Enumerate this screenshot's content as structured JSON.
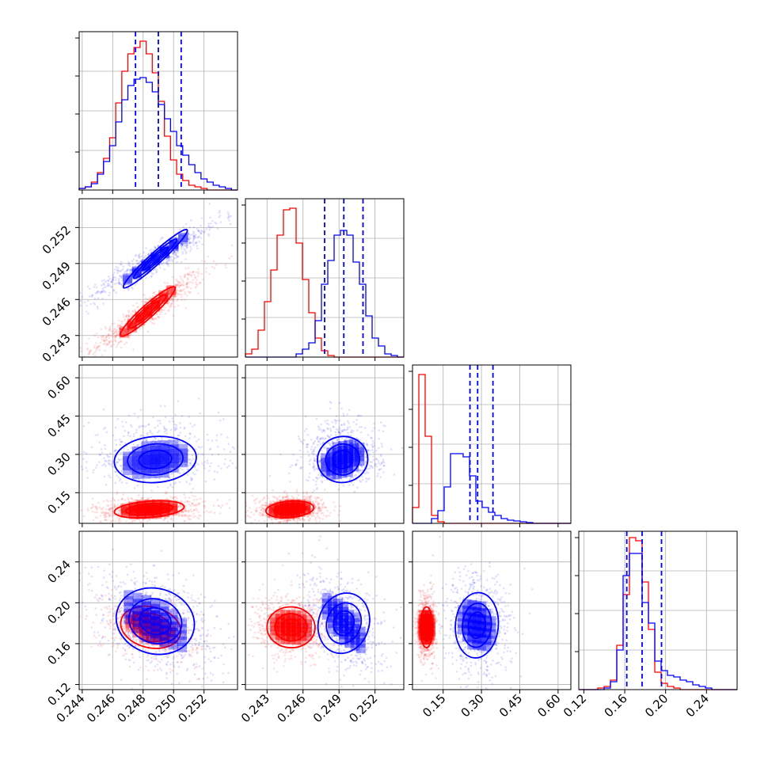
{
  "chart_data": {
    "type": "corner",
    "grid": true,
    "series": [
      {
        "color": "#ff0000"
      },
      {
        "color": "#0000ff"
      }
    ],
    "parameters": [
      {
        "range": [
          0.2438,
          0.2542
        ],
        "ticks": [
          0.244,
          0.246,
          0.248,
          0.25,
          0.252
        ],
        "tick_labels": [
          "0.244",
          "0.246",
          "0.248",
          "0.250",
          "0.252"
        ]
      },
      {
        "range": [
          0.2412,
          0.2544
        ],
        "ticks": [
          0.243,
          0.246,
          0.249,
          0.252
        ],
        "tick_labels": [
          "0.243",
          "0.246",
          "0.249",
          "0.252"
        ]
      },
      {
        "range": [
          0.03,
          0.65
        ],
        "ticks": [
          0.15,
          0.3,
          0.45,
          0.6
        ],
        "tick_labels": [
          "0.15",
          "0.30",
          "0.45",
          "0.60"
        ]
      },
      {
        "range": [
          0.115,
          0.27
        ],
        "ticks": [
          0.12,
          0.16,
          0.2,
          0.24
        ],
        "tick_labels": [
          "0.12",
          "0.16",
          "0.20",
          "0.24"
        ]
      }
    ],
    "quantiles": [
      [
        0.2475,
        0.249,
        0.2505
      ],
      [
        0.2478,
        0.2494,
        0.251
      ],
      [
        0.255,
        0.285,
        0.345
      ],
      [
        0.162,
        0.177,
        0.196
      ]
    ],
    "marginals": [
      {
        "bins": [
          0.2438,
          0.2542,
          26
        ],
        "counts": [
          [
            0.01,
            0.02,
            0.05,
            0.11,
            0.2,
            0.33,
            0.55,
            0.75,
            0.86,
            0.9,
            0.94,
            0.86,
            0.74,
            0.56,
            0.34,
            0.19,
            0.1,
            0.06,
            0.03,
            0.02,
            0.01,
            0,
            0,
            0,
            0,
            0
          ],
          [
            0.01,
            0.02,
            0.04,
            0.1,
            0.18,
            0.28,
            0.43,
            0.57,
            0.66,
            0.7,
            0.71,
            0.68,
            0.62,
            0.54,
            0.45,
            0.37,
            0.28,
            0.22,
            0.16,
            0.11,
            0.07,
            0.05,
            0.03,
            0.02,
            0.01,
            0.0
          ]
        ]
      },
      {
        "bins": [
          0.2412,
          0.2544,
          25
        ],
        "counts": [
          [
            0.02,
            0.05,
            0.17,
            0.35,
            0.55,
            0.77,
            0.93,
            0.94,
            0.72,
            0.49,
            0.28,
            0.12,
            0.04,
            0.01,
            0,
            0,
            0,
            0,
            0,
            0,
            0,
            0,
            0,
            0,
            0
          ],
          [
            0,
            0,
            0,
            0,
            0,
            0,
            0,
            0,
            0.02,
            0.05,
            0.09,
            0.23,
            0.46,
            0.61,
            0.77,
            0.8,
            0.77,
            0.6,
            0.46,
            0.26,
            0.12,
            0.07,
            0.02,
            0.01,
            0
          ]
        ]
      },
      {
        "bins": [
          0.03,
          0.65,
          25
        ],
        "counts": [
          [
            0.1,
            0.94,
            0.55,
            0.05,
            0.01,
            0,
            0,
            0,
            0,
            0,
            0,
            0,
            0,
            0,
            0,
            0,
            0,
            0,
            0,
            0,
            0,
            0,
            0,
            0,
            0
          ],
          [
            0,
            0,
            0,
            0.03,
            0.08,
            0.23,
            0.44,
            0.44,
            0.42,
            0.3,
            0.14,
            0.1,
            0.07,
            0.05,
            0.03,
            0.02,
            0.015,
            0.01,
            0.005,
            0,
            0,
            0,
            0,
            0,
            0
          ]
        ]
      },
      {
        "bins": [
          0.115,
          0.27,
          25
        ],
        "counts": [
          [
            0,
            0,
            0,
            0.01,
            0.02,
            0.06,
            0.28,
            0.6,
            0.96,
            0.94,
            0.68,
            0.38,
            0.11,
            0.04,
            0.02,
            0.01,
            0,
            0,
            0,
            0,
            0,
            0,
            0,
            0,
            0
          ],
          [
            0,
            0,
            0,
            0,
            0.01,
            0.05,
            0.25,
            0.72,
            0.86,
            0.86,
            0.55,
            0.42,
            0.18,
            0.12,
            0.09,
            0.08,
            0.06,
            0.05,
            0.03,
            0.02,
            0.01,
            0,
            0,
            0,
            0
          ]
        ]
      }
    ],
    "joint_2d": [
      {
        "pair": [
          1,
          0
        ],
        "series": [
          {
            "mean": [
              0.2483,
              0.245
            ],
            "sd": [
              0.00115,
              0.00105
            ],
            "rho": 0.93
          },
          {
            "mean": [
              0.2488,
              0.2494
            ],
            "sd": [
              0.00135,
              0.00105
            ],
            "rho": 0.94
          }
        ]
      },
      {
        "pair": [
          2,
          0
        ],
        "series": [
          {
            "mean": [
              0.2484,
              0.085
            ],
            "sd": [
              0.00115,
              0.016
            ],
            "rho": 0.1
          },
          {
            "mean": [
              0.2488,
              0.28
            ],
            "sd": [
              0.00135,
              0.045
            ],
            "rho": 0.1
          }
        ]
      },
      {
        "pair": [
          2,
          1
        ],
        "series": [
          {
            "mean": [
              0.2449,
              0.085
            ],
            "sd": [
              0.001,
              0.016
            ],
            "rho": 0.1
          },
          {
            "mean": [
              0.2493,
              0.28
            ],
            "sd": [
              0.00105,
              0.045
            ],
            "rho": 0.2
          }
        ]
      },
      {
        "pair": [
          3,
          0
        ],
        "series": [
          {
            "mean": [
              0.2485,
              0.176
            ],
            "sd": [
              0.001,
              0.01
            ],
            "rho": -0.3
          },
          {
            "mean": [
              0.2488,
              0.182
            ],
            "sd": [
              0.0013,
              0.016
            ],
            "rho": -0.35
          }
        ]
      },
      {
        "pair": [
          3,
          1
        ],
        "series": [
          {
            "mean": [
              0.245,
              0.176
            ],
            "sd": [
              0.001,
              0.01
            ],
            "rho": -0.05
          },
          {
            "mean": [
              0.2494,
              0.18
            ],
            "sd": [
              0.00105,
              0.015
            ],
            "rho": -0.4
          }
        ]
      },
      {
        "pair": [
          3,
          2
        ],
        "series": [
          {
            "mean": [
              0.085,
              0.176
            ],
            "sd": [
              0.012,
              0.01
            ],
            "rho": 0.0
          },
          {
            "mean": [
              0.282,
              0.178
            ],
            "sd": [
              0.042,
              0.016
            ],
            "rho": -0.1
          }
        ]
      }
    ]
  }
}
